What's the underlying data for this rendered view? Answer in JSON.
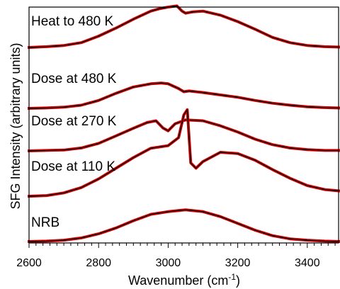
{
  "chart_data": {
    "type": "line",
    "xlabel": "Wavenumber (cm",
    "xlabel_sup": "-1",
    "xlabel_suffix": ")",
    "ylabel": "SFG Intensity (arbitrary units)",
    "xlim": [
      2600,
      3490
    ],
    "y_scale": "arbitrary",
    "xticks": [
      "2600",
      "2800",
      "3000",
      "3200",
      "3400"
    ],
    "tick_values": [
      2600,
      2800,
      3000,
      3200,
      3400
    ],
    "series_colors": {
      "data": "#e30000",
      "fit": "#000000"
    },
    "series": [
      {
        "name": "Heat to 480 K",
        "baseline": 4.0,
        "x": [
          2600,
          2650,
          2700,
          2750,
          2800,
          2850,
          2900,
          2950,
          2975,
          3000,
          3025,
          3040,
          3050,
          3070,
          3100,
          3150,
          3200,
          3250,
          3300,
          3350,
          3400,
          3450,
          3490
        ],
        "y": [
          0.0,
          0.02,
          0.05,
          0.12,
          0.28,
          0.48,
          0.7,
          0.9,
          0.96,
          1.0,
          1.03,
          0.9,
          0.85,
          0.88,
          0.9,
          0.8,
          0.64,
          0.45,
          0.25,
          0.12,
          0.05,
          0.02,
          0.01
        ]
      },
      {
        "name": "Dose at 480 K",
        "baseline": 3.0,
        "x": [
          2600,
          2650,
          2700,
          2750,
          2800,
          2850,
          2900,
          2950,
          2980,
          3000,
          3030,
          3045,
          3060,
          3100,
          3150,
          3200,
          3250,
          3300,
          3350,
          3400,
          3450,
          3490
        ],
        "y": [
          0.0,
          0.01,
          0.03,
          0.08,
          0.2,
          0.38,
          0.54,
          0.62,
          0.64,
          0.62,
          0.5,
          0.42,
          0.44,
          0.4,
          0.34,
          0.28,
          0.2,
          0.13,
          0.08,
          0.04,
          0.02,
          0.01
        ]
      },
      {
        "name": "Dose at 270 K",
        "baseline": 2.0,
        "x": [
          2600,
          2650,
          2700,
          2750,
          2800,
          2850,
          2900,
          2940,
          2965,
          2985,
          3000,
          3020,
          3050,
          3100,
          3150,
          3200,
          3250,
          3300,
          3350,
          3400,
          3450,
          3490
        ],
        "y": [
          0.0,
          0.01,
          0.02,
          0.07,
          0.18,
          0.36,
          0.54,
          0.68,
          0.72,
          0.55,
          0.48,
          0.65,
          0.74,
          0.72,
          0.6,
          0.45,
          0.28,
          0.15,
          0.07,
          0.03,
          0.01,
          0.01
        ]
      },
      {
        "name": "Dose at 110 K",
        "baseline": 1.0,
        "x": [
          2600,
          2650,
          2700,
          2750,
          2800,
          2850,
          2900,
          2950,
          3000,
          3030,
          3045,
          3055,
          3065,
          3080,
          3100,
          3150,
          3200,
          3250,
          3300,
          3350,
          3400,
          3450,
          3490
        ],
        "y": [
          0.0,
          0.01,
          0.05,
          0.13,
          0.26,
          0.42,
          0.58,
          0.72,
          0.76,
          0.88,
          1.22,
          1.3,
          0.5,
          0.42,
          0.52,
          0.66,
          0.64,
          0.54,
          0.4,
          0.27,
          0.16,
          0.1,
          0.08
        ]
      },
      {
        "name": "NRB",
        "baseline": 0.0,
        "x": [
          2600,
          2650,
          2700,
          2750,
          2800,
          2850,
          2900,
          2950,
          3000,
          3050,
          3100,
          3150,
          3200,
          3250,
          3300,
          3350,
          3400,
          3450,
          3490
        ],
        "y": [
          0.0,
          0.01,
          0.03,
          0.08,
          0.17,
          0.3,
          0.46,
          0.6,
          0.66,
          0.7,
          0.66,
          0.55,
          0.4,
          0.25,
          0.13,
          0.06,
          0.03,
          0.01,
          0.0
        ]
      }
    ]
  }
}
